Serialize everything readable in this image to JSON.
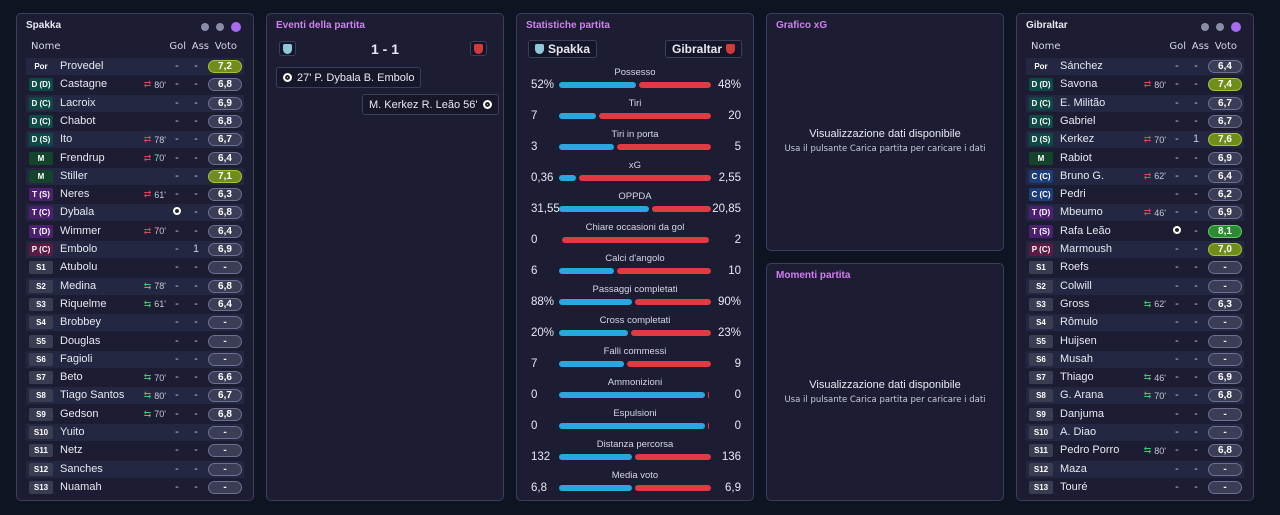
{
  "home_panel": {
    "title": "Spakka",
    "headers": {
      "name": "Nome",
      "gol": "Gol",
      "ass": "Ass",
      "voto": "Voto"
    },
    "players": [
      {
        "pos": "Por",
        "kind": "gk",
        "name": "Provedel",
        "sub": "",
        "sub_dir": "",
        "gol": "-",
        "ass": "-",
        "voto": "7,2",
        "rating": "good"
      },
      {
        "pos": "D (D)",
        "kind": "def",
        "name": "Castagne",
        "sub": "80'",
        "sub_dir": "out",
        "gol": "-",
        "ass": "-",
        "voto": "6,8",
        "rating": ""
      },
      {
        "pos": "D (C)",
        "kind": "def",
        "name": "Lacroix",
        "sub": "",
        "sub_dir": "",
        "gol": "-",
        "ass": "-",
        "voto": "6,9",
        "rating": ""
      },
      {
        "pos": "D (C)",
        "kind": "def",
        "name": "Chabot",
        "sub": "",
        "sub_dir": "",
        "gol": "-",
        "ass": "-",
        "voto": "6,8",
        "rating": ""
      },
      {
        "pos": "D (S)",
        "kind": "def",
        "name": "Ito",
        "sub": "78'",
        "sub_dir": "out",
        "gol": "-",
        "ass": "-",
        "voto": "6,7",
        "rating": ""
      },
      {
        "pos": "M",
        "kind": "mid",
        "name": "Frendrup",
        "sub": "70'",
        "sub_dir": "out",
        "gol": "-",
        "ass": "-",
        "voto": "6,4",
        "rating": ""
      },
      {
        "pos": "M",
        "kind": "mid",
        "name": "Stiller",
        "sub": "",
        "sub_dir": "",
        "gol": "-",
        "ass": "-",
        "voto": "7,1",
        "rating": "good"
      },
      {
        "pos": "T (S)",
        "kind": "att",
        "name": "Neres",
        "sub": "61'",
        "sub_dir": "out",
        "gol": "-",
        "ass": "-",
        "voto": "6,3",
        "rating": ""
      },
      {
        "pos": "T (C)",
        "kind": "att",
        "name": "Dybala",
        "sub": "",
        "sub_dir": "goal",
        "gol": "",
        "ass": "-",
        "voto": "6,8",
        "rating": ""
      },
      {
        "pos": "T (D)",
        "kind": "att",
        "name": "Wimmer",
        "sub": "70'",
        "sub_dir": "out",
        "gol": "-",
        "ass": "-",
        "voto": "6,4",
        "rating": ""
      },
      {
        "pos": "P (C)",
        "kind": "fwd",
        "name": "Embolo",
        "sub": "",
        "sub_dir": "",
        "gol": "-",
        "ass": "1",
        "voto": "6,9",
        "rating": ""
      },
      {
        "pos": "S1",
        "kind": "sub",
        "name": "Atubolu",
        "sub": "",
        "sub_dir": "",
        "gol": "-",
        "ass": "-",
        "voto": "-",
        "rating": ""
      },
      {
        "pos": "S2",
        "kind": "sub",
        "name": "Medina",
        "sub": "78'",
        "sub_dir": "in",
        "gol": "-",
        "ass": "-",
        "voto": "6,8",
        "rating": ""
      },
      {
        "pos": "S3",
        "kind": "sub",
        "name": "Riquelme",
        "sub": "61'",
        "sub_dir": "in",
        "gol": "-",
        "ass": "-",
        "voto": "6,4",
        "rating": ""
      },
      {
        "pos": "S4",
        "kind": "sub",
        "name": "Brobbey",
        "sub": "",
        "sub_dir": "",
        "gol": "-",
        "ass": "-",
        "voto": "-",
        "rating": ""
      },
      {
        "pos": "S5",
        "kind": "sub",
        "name": "Douglas",
        "sub": "",
        "sub_dir": "",
        "gol": "-",
        "ass": "-",
        "voto": "-",
        "rating": ""
      },
      {
        "pos": "S6",
        "kind": "sub",
        "name": "Fagioli",
        "sub": "",
        "sub_dir": "",
        "gol": "-",
        "ass": "-",
        "voto": "-",
        "rating": ""
      },
      {
        "pos": "S7",
        "kind": "sub",
        "name": "Beto",
        "sub": "70'",
        "sub_dir": "in",
        "gol": "-",
        "ass": "-",
        "voto": "6,6",
        "rating": ""
      },
      {
        "pos": "S8",
        "kind": "sub",
        "name": "Tiago Santos",
        "sub": "80'",
        "sub_dir": "in",
        "gol": "-",
        "ass": "-",
        "voto": "6,7",
        "rating": ""
      },
      {
        "pos": "S9",
        "kind": "sub",
        "name": "Gedson",
        "sub": "70'",
        "sub_dir": "in",
        "gol": "-",
        "ass": "-",
        "voto": "6,8",
        "rating": ""
      },
      {
        "pos": "S10",
        "kind": "sub",
        "name": "Yuito",
        "sub": "",
        "sub_dir": "",
        "gol": "-",
        "ass": "-",
        "voto": "-",
        "rating": ""
      },
      {
        "pos": "S11",
        "kind": "sub",
        "name": "Netz",
        "sub": "",
        "sub_dir": "",
        "gol": "-",
        "ass": "-",
        "voto": "-",
        "rating": ""
      },
      {
        "pos": "S12",
        "kind": "sub",
        "name": "Sanches",
        "sub": "",
        "sub_dir": "",
        "gol": "-",
        "ass": "-",
        "voto": "-",
        "rating": ""
      },
      {
        "pos": "S13",
        "kind": "sub",
        "name": "Nuamah",
        "sub": "",
        "sub_dir": "",
        "gol": "-",
        "ass": "-",
        "voto": "-",
        "rating": ""
      }
    ]
  },
  "away_panel": {
    "title": "Gibraltar",
    "headers": {
      "name": "Nome",
      "gol": "Gol",
      "ass": "Ass",
      "voto": "Voto"
    },
    "players": [
      {
        "pos": "Por",
        "kind": "gk",
        "name": "Sánchez",
        "sub": "",
        "sub_dir": "",
        "gol": "-",
        "ass": "-",
        "voto": "6,4",
        "rating": ""
      },
      {
        "pos": "D (D)",
        "kind": "def",
        "name": "Savona",
        "sub": "80'",
        "sub_dir": "out",
        "gol": "-",
        "ass": "-",
        "voto": "7,4",
        "rating": "good"
      },
      {
        "pos": "D (C)",
        "kind": "def",
        "name": "E. Militão",
        "sub": "",
        "sub_dir": "",
        "gol": "-",
        "ass": "-",
        "voto": "6,7",
        "rating": ""
      },
      {
        "pos": "D (C)",
        "kind": "def",
        "name": "Gabriel",
        "sub": "",
        "sub_dir": "",
        "gol": "-",
        "ass": "-",
        "voto": "6,7",
        "rating": ""
      },
      {
        "pos": "D (S)",
        "kind": "def",
        "name": "Kerkez",
        "sub": "70'",
        "sub_dir": "out",
        "gol": "-",
        "ass": "1",
        "voto": "7,6",
        "rating": "good"
      },
      {
        "pos": "M",
        "kind": "mid",
        "name": "Rabiot",
        "sub": "",
        "sub_dir": "",
        "gol": "-",
        "ass": "-",
        "voto": "6,9",
        "rating": ""
      },
      {
        "pos": "C (C)",
        "kind": "cen",
        "name": "Bruno G.",
        "sub": "62'",
        "sub_dir": "out",
        "gol": "-",
        "ass": "-",
        "voto": "6,4",
        "rating": ""
      },
      {
        "pos": "C (C)",
        "kind": "cen",
        "name": "Pedri",
        "sub": "",
        "sub_dir": "",
        "gol": "-",
        "ass": "-",
        "voto": "6,2",
        "rating": ""
      },
      {
        "pos": "T (D)",
        "kind": "att",
        "name": "Mbeumo",
        "sub": "46'",
        "sub_dir": "out",
        "gol": "-",
        "ass": "-",
        "voto": "6,9",
        "rating": ""
      },
      {
        "pos": "T (S)",
        "kind": "att",
        "name": "Rafa Leão",
        "sub": "",
        "sub_dir": "goal",
        "gol": "",
        "ass": "-",
        "voto": "8,1",
        "rating": "great"
      },
      {
        "pos": "P (C)",
        "kind": "fwd",
        "name": "Marmoush",
        "sub": "",
        "sub_dir": "",
        "gol": "-",
        "ass": "-",
        "voto": "7,0",
        "rating": "good"
      },
      {
        "pos": "S1",
        "kind": "sub",
        "name": "Roefs",
        "sub": "",
        "sub_dir": "",
        "gol": "-",
        "ass": "-",
        "voto": "-",
        "rating": ""
      },
      {
        "pos": "S2",
        "kind": "sub",
        "name": "Colwill",
        "sub": "",
        "sub_dir": "",
        "gol": "-",
        "ass": "-",
        "voto": "-",
        "rating": ""
      },
      {
        "pos": "S3",
        "kind": "sub",
        "name": "Gross",
        "sub": "62'",
        "sub_dir": "in",
        "gol": "-",
        "ass": "-",
        "voto": "6,3",
        "rating": ""
      },
      {
        "pos": "S4",
        "kind": "sub",
        "name": "Rômulo",
        "sub": "",
        "sub_dir": "",
        "gol": "-",
        "ass": "-",
        "voto": "-",
        "rating": ""
      },
      {
        "pos": "S5",
        "kind": "sub",
        "name": "Huijsen",
        "sub": "",
        "sub_dir": "",
        "gol": "-",
        "ass": "-",
        "voto": "-",
        "rating": ""
      },
      {
        "pos": "S6",
        "kind": "sub",
        "name": "Musah",
        "sub": "",
        "sub_dir": "",
        "gol": "-",
        "ass": "-",
        "voto": "-",
        "rating": ""
      },
      {
        "pos": "S7",
        "kind": "sub",
        "name": "Thiago",
        "sub": "46'",
        "sub_dir": "in",
        "gol": "-",
        "ass": "-",
        "voto": "6,9",
        "rating": ""
      },
      {
        "pos": "S8",
        "kind": "sub",
        "name": "G. Arana",
        "sub": "70'",
        "sub_dir": "in",
        "gol": "-",
        "ass": "-",
        "voto": "6,8",
        "rating": ""
      },
      {
        "pos": "S9",
        "kind": "sub",
        "name": "Danjuma",
        "sub": "",
        "sub_dir": "",
        "gol": "-",
        "ass": "-",
        "voto": "-",
        "rating": ""
      },
      {
        "pos": "S10",
        "kind": "sub",
        "name": "A. Diao",
        "sub": "",
        "sub_dir": "",
        "gol": "-",
        "ass": "-",
        "voto": "-",
        "rating": ""
      },
      {
        "pos": "S11",
        "kind": "sub",
        "name": "Pedro Porro",
        "sub": "80'",
        "sub_dir": "in",
        "gol": "-",
        "ass": "-",
        "voto": "6,8",
        "rating": ""
      },
      {
        "pos": "S12",
        "kind": "sub",
        "name": "Maza",
        "sub": "",
        "sub_dir": "",
        "gol": "-",
        "ass": "-",
        "voto": "-",
        "rating": ""
      },
      {
        "pos": "S13",
        "kind": "sub",
        "name": "Touré",
        "sub": "",
        "sub_dir": "",
        "gol": "-",
        "ass": "-",
        "voto": "-",
        "rating": ""
      }
    ]
  },
  "events": {
    "title": "Eventi della partita",
    "score": "1 - 1",
    "items": [
      {
        "side": "home",
        "text": "27' P. Dybala B. Embolo"
      },
      {
        "side": "away",
        "text": "M. Kerkez R. Leão 56'"
      }
    ]
  },
  "stats": {
    "title": "Statistiche partita",
    "home_team": "Spakka",
    "away_team": "Gibraltar",
    "rows": [
      {
        "label": "Possesso",
        "home": "52%",
        "away": "48%",
        "hv": 52,
        "av": 48
      },
      {
        "label": "Tiri",
        "home": "7",
        "away": "20",
        "hv": 7,
        "av": 20
      },
      {
        "label": "Tiri in porta",
        "home": "3",
        "away": "5",
        "hv": 3,
        "av": 5
      },
      {
        "label": "xG",
        "home": "0,36",
        "away": "2,55",
        "hv": 0.36,
        "av": 2.55
      },
      {
        "label": "OPPDA",
        "home": "31,55",
        "away": "20,85",
        "hv": 31.55,
        "av": 20.85
      },
      {
        "label": "Chiare occasioni da gol",
        "home": "0",
        "away": "2",
        "hv": 0,
        "av": 2
      },
      {
        "label": "Calci d'angolo",
        "home": "6",
        "away": "10",
        "hv": 6,
        "av": 10
      },
      {
        "label": "Passaggi completati",
        "home": "88%",
        "away": "90%",
        "hv": 88,
        "av": 90
      },
      {
        "label": "Cross completati",
        "home": "20%",
        "away": "23%",
        "hv": 20,
        "av": 23
      },
      {
        "label": "Falli commessi",
        "home": "7",
        "away": "9",
        "hv": 7,
        "av": 9
      },
      {
        "label": "Ammonizioni",
        "home": "0",
        "away": "0",
        "hv": 0,
        "av": 0
      },
      {
        "label": "Espulsioni",
        "home": "0",
        "away": "0",
        "hv": 0,
        "av": 0
      },
      {
        "label": "Distanza percorsa",
        "home": "132",
        "away": "136",
        "hv": 132,
        "av": 136
      },
      {
        "label": "Media voto",
        "home": "6,8",
        "away": "6,9",
        "hv": 6.8,
        "av": 6.9
      }
    ]
  },
  "xg_panel": {
    "title": "Grafico xG",
    "message": "Visualizzazione dati disponibile",
    "hint": "Usa il pulsante Carica partita per caricare i dati"
  },
  "moments_panel": {
    "title": "Momenti partita",
    "message": "Visualizzazione dati disponibile",
    "hint": "Usa il pulsante Carica partita per caricare i dati"
  },
  "colors": {
    "home_bar": "#29a8e0",
    "away_bar": "#e03a42",
    "accent": "#a66cf0",
    "panel_title": "#d27ff0"
  },
  "icons": {
    "home_crest": "shield-icon",
    "away_crest": "shield-icon",
    "goal": "ball-icon",
    "sub_in": "sub-in-arrow-icon",
    "sub_out": "sub-out-arrow-icon"
  }
}
